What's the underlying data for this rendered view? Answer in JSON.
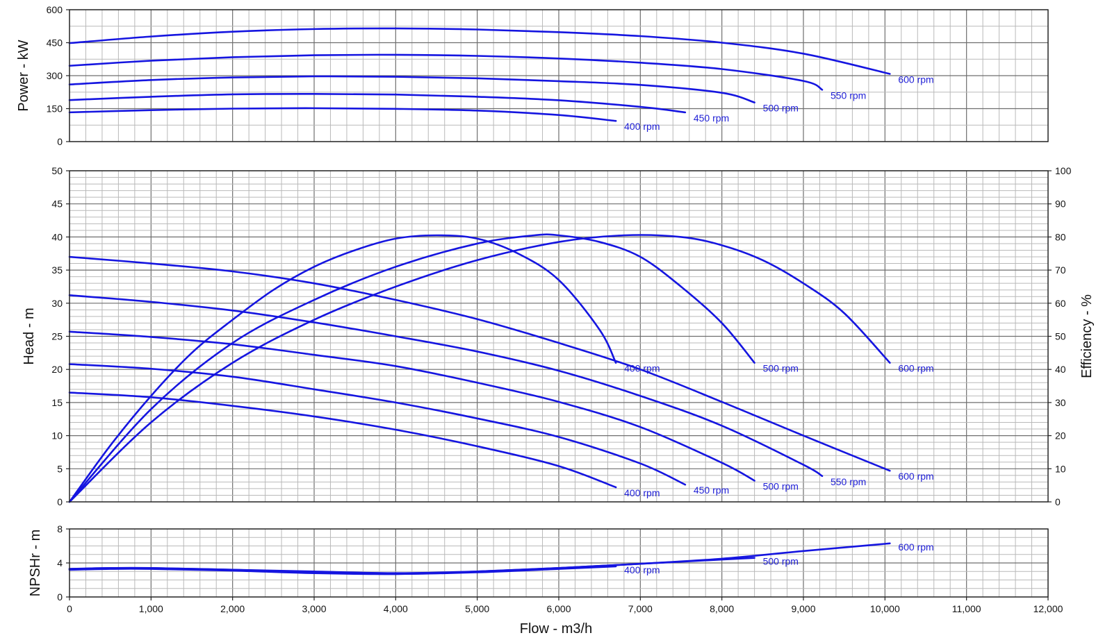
{
  "colors": {
    "curve": "#1515e0",
    "label": "#1f1fd6"
  },
  "chart_data": [
    {
      "name": "power",
      "type": "line",
      "xlabel": "Flow - m3/h",
      "ylabel": "Power - kW",
      "xlim": [
        0,
        12000
      ],
      "ylim": [
        0,
        600
      ],
      "yticks": [
        "0",
        "150",
        "300",
        "450",
        "600"
      ],
      "grid": true,
      "series": [
        {
          "name": "400 rpm",
          "label": "400 rpm",
          "x": [
            0,
            1000,
            2000,
            3000,
            4000,
            5000,
            6000,
            6700
          ],
          "y": [
            133,
            143,
            150,
            152,
            149,
            141,
            121,
            94
          ]
        },
        {
          "name": "450 rpm",
          "label": "450 rpm",
          "x": [
            0,
            1000,
            2000,
            3000,
            4000,
            5000,
            6000,
            7000,
            7550
          ],
          "y": [
            189,
            204,
            215,
            217,
            214,
            204,
            188,
            158,
            133
          ]
        },
        {
          "name": "500 rpm",
          "label": "500 rpm",
          "x": [
            0,
            1000,
            2000,
            3000,
            4000,
            5000,
            6000,
            7000,
            8000,
            8400
          ],
          "y": [
            260,
            280,
            292,
            297,
            295,
            288,
            275,
            258,
            222,
            178
          ]
        },
        {
          "name": "550 rpm",
          "label": "550 rpm",
          "x": [
            0,
            1000,
            2000,
            3000,
            4000,
            5000,
            6000,
            7000,
            8000,
            9000,
            9230
          ],
          "y": [
            345,
            368,
            384,
            393,
            395,
            390,
            378,
            359,
            330,
            276,
            236
          ]
        },
        {
          "name": "600 rpm",
          "label": "600 rpm",
          "x": [
            0,
            1000,
            2000,
            3000,
            4000,
            5000,
            6000,
            7000,
            8000,
            9000,
            10060
          ],
          "y": [
            448,
            478,
            500,
            512,
            515,
            510,
            498,
            480,
            450,
            400,
            308
          ]
        }
      ]
    },
    {
      "name": "head-efficiency",
      "type": "line",
      "xlabel": "Flow - m3/h",
      "ylabel": "Head - m",
      "y2label": "Efficiency - %",
      "xlim": [
        0,
        12000
      ],
      "ylim": [
        0,
        50
      ],
      "y2lim": [
        0,
        100
      ],
      "yticks": [
        "0",
        "5",
        "10",
        "15",
        "20",
        "25",
        "30",
        "35",
        "40",
        "45",
        "50"
      ],
      "y2ticks": [
        "0",
        "10",
        "20",
        "30",
        "40",
        "50",
        "60",
        "70",
        "80",
        "90",
        "100"
      ],
      "grid": true,
      "head_series": [
        {
          "name": "400 rpm",
          "label": "400 rpm",
          "x": [
            0,
            1000,
            2000,
            3000,
            4000,
            5000,
            6000,
            6700
          ],
          "y": [
            16.5,
            15.8,
            14.5,
            12.9,
            10.9,
            8.4,
            5.4,
            2.2
          ]
        },
        {
          "name": "450 rpm",
          "label": "450 rpm",
          "x": [
            0,
            1000,
            2000,
            3000,
            4000,
            5000,
            6000,
            7000,
            7550
          ],
          "y": [
            20.8,
            20.1,
            18.9,
            17.0,
            15.0,
            12.6,
            9.8,
            5.8,
            2.6
          ]
        },
        {
          "name": "500 rpm",
          "label": "500 rpm",
          "x": [
            0,
            1000,
            2000,
            3000,
            4000,
            5000,
            6000,
            7000,
            8000,
            8400
          ],
          "y": [
            25.7,
            24.9,
            23.8,
            22.2,
            20.5,
            18.0,
            15.1,
            11.3,
            5.9,
            3.2
          ]
        },
        {
          "name": "550 rpm",
          "label": "550 rpm",
          "x": [
            0,
            1000,
            2000,
            3000,
            4000,
            5000,
            6000,
            7000,
            8000,
            9000,
            9230
          ],
          "y": [
            31.2,
            30.2,
            28.9,
            27.1,
            25.0,
            22.7,
            19.8,
            16.0,
            11.5,
            5.6,
            3.9
          ]
        },
        {
          "name": "600 rpm",
          "label": "600 rpm",
          "x": [
            0,
            1000,
            2000,
            3000,
            4000,
            5000,
            6000,
            7000,
            8000,
            9000,
            10060
          ],
          "y": [
            37.0,
            36.0,
            34.8,
            33.0,
            30.5,
            27.6,
            24.0,
            20.0,
            15.1,
            10.0,
            4.7
          ]
        }
      ],
      "efficiency_series": [
        {
          "name": "400 rpm",
          "label": "400 rpm",
          "x": [
            0,
            500,
            1000,
            1500,
            2000,
            2500,
            3000,
            3500,
            4000,
            4500,
            5000,
            5500,
            6000,
            6500,
            6700
          ],
          "y": [
            0,
            17,
            32,
            45,
            55,
            64,
            71,
            76,
            79.5,
            80.5,
            79.5,
            75,
            67,
            52,
            42
          ]
        },
        {
          "name": "500 rpm",
          "label": "500 rpm",
          "x": [
            0,
            1000,
            2000,
            3000,
            4000,
            5000,
            5700,
            6000,
            6500,
            7000,
            7500,
            8000,
            8400
          ],
          "y": [
            0,
            28,
            48,
            61,
            71,
            78,
            80.5,
            80.5,
            78.5,
            74,
            65,
            54,
            42
          ]
        },
        {
          "name": "600 rpm",
          "label": "600 rpm",
          "x": [
            0,
            1000,
            2000,
            3000,
            4000,
            5000,
            6000,
            6800,
            7500,
            8000,
            8500,
            9000,
            9500,
            10060
          ],
          "y": [
            0,
            24,
            42,
            55,
            65,
            73,
            78.5,
            80.5,
            80,
            77.5,
            73,
            66,
            57,
            42
          ]
        }
      ]
    },
    {
      "name": "npshr",
      "type": "line",
      "xlabel": "Flow - m3/h",
      "ylabel": "NPSHr - m",
      "xlim": [
        0,
        12000
      ],
      "ylim": [
        0,
        8
      ],
      "yticks": [
        "0",
        "4",
        "8"
      ],
      "xticks": [
        "0",
        "1,000",
        "2,000",
        "3,000",
        "4,000",
        "5,000",
        "6,000",
        "7,000",
        "8,000",
        "9,000",
        "10,000",
        "11,000",
        "12,000"
      ],
      "grid": true,
      "series": [
        {
          "name": "400 rpm",
          "label": "400 rpm",
          "x": [
            0,
            500,
            1000,
            2000,
            3000,
            4000,
            5000,
            6000,
            6700
          ],
          "y": [
            3.2,
            3.3,
            3.3,
            3.1,
            2.8,
            2.7,
            2.9,
            3.3,
            3.6
          ]
        },
        {
          "name": "500 rpm",
          "label": "500 rpm",
          "x": [
            0,
            500,
            1000,
            2000,
            3000,
            4000,
            5000,
            6000,
            7000,
            8000,
            8400
          ],
          "y": [
            3.3,
            3.4,
            3.4,
            3.2,
            2.9,
            2.7,
            3.0,
            3.4,
            3.9,
            4.4,
            4.6
          ]
        },
        {
          "name": "600 rpm",
          "label": "600 rpm",
          "x": [
            0,
            500,
            1000,
            2000,
            3000,
            4000,
            5000,
            6000,
            7000,
            8000,
            9000,
            10060
          ],
          "y": [
            3.3,
            3.4,
            3.4,
            3.2,
            3.0,
            2.8,
            3.0,
            3.4,
            3.9,
            4.5,
            5.4,
            6.3
          ]
        }
      ]
    }
  ]
}
